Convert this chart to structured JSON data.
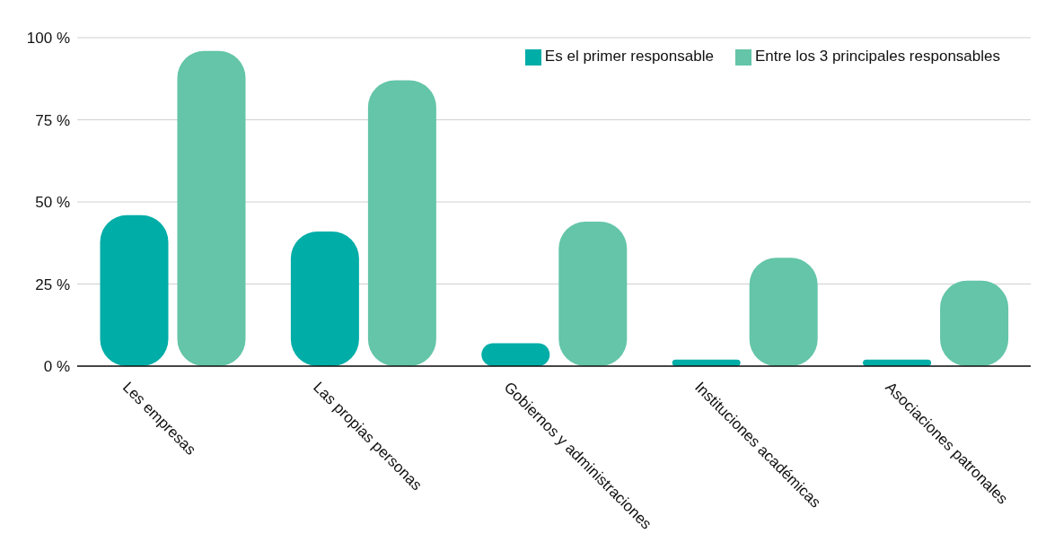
{
  "chart_data": {
    "type": "bar",
    "categories": [
      "Les empresas",
      "Las propias personas",
      "Gobiernos y administraciones",
      "Instituciones académicas",
      "Asociaciones patronales"
    ],
    "series": [
      {
        "name": "Es el primer responsable",
        "color": "#00ada7",
        "values": [
          46,
          41,
          7,
          2,
          2
        ]
      },
      {
        "name": "Entre los 3 principales responsables",
        "color": "#64c5a8",
        "values": [
          96,
          87,
          44,
          33,
          26
        ]
      }
    ],
    "ylim": [
      0,
      100
    ],
    "yticks": [
      {
        "value": 0,
        "label": "0 %"
      },
      {
        "value": 25,
        "label": "25 %"
      },
      {
        "value": 50,
        "label": "50 %"
      },
      {
        "value": 75,
        "label": "75 %"
      },
      {
        "value": 100,
        "label": "100 %"
      }
    ],
    "grid": "y",
    "legend": "top right"
  }
}
